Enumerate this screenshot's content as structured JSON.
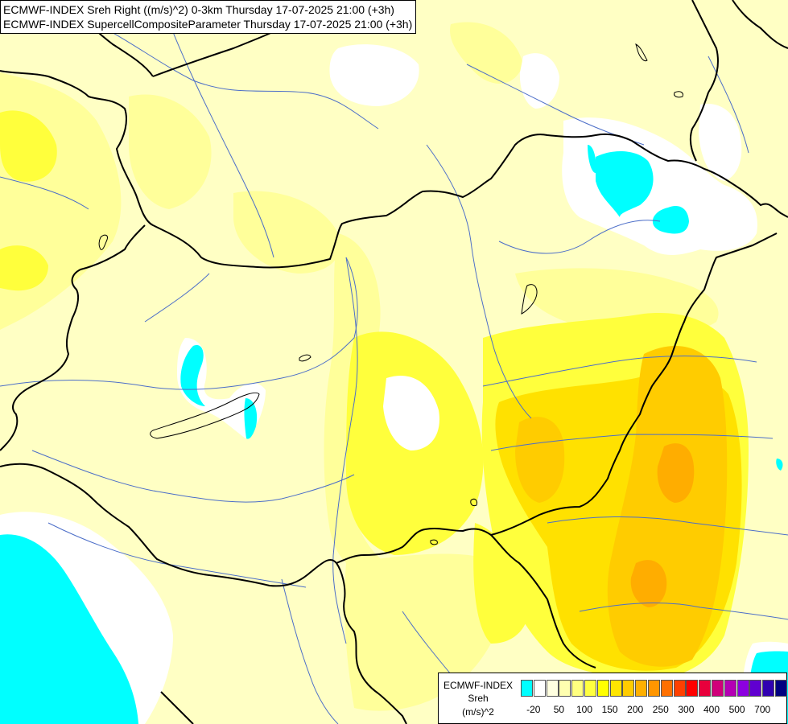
{
  "header": {
    "line1": "ECMWF-INDEX Sreh Right ((m/s)^2) 0-3km Thursday 17-07-2025 21:00 (+3h)",
    "line2": "ECMWF-INDEX SupercellCompositeParameter Thursday 17-07-2025 21:00 (+3h)"
  },
  "legend": {
    "title_1": "ECMWF-INDEX",
    "title_2": "Sreh",
    "title_3": "(m/s)^2",
    "colors": [
      "#00ffff",
      "#ffffff",
      "#ffffe0",
      "#ffffb0",
      "#ffff80",
      "#ffff40",
      "#ffff00",
      "#ffe600",
      "#ffcc00",
      "#ffb000",
      "#ff9600",
      "#ff7000",
      "#ff4000",
      "#ff0000",
      "#e8003c",
      "#d0007a",
      "#b400b4",
      "#8c00e0",
      "#6000d0",
      "#3000b0",
      "#000080"
    ],
    "ticks": [
      "-20",
      "50",
      "100",
      "150",
      "200",
      "250",
      "300",
      "400",
      "500",
      "700"
    ]
  },
  "map_fields": {
    "background": "#ffffc4",
    "cyan": "#00ffff",
    "white": "#ffffff",
    "pale": "#ffff9a",
    "yellow": "#ffff3c",
    "gold": "#ffe100",
    "amber": "#ffcc00",
    "orange": "#ffad00",
    "border_color": "#000000",
    "river_color": "#4c6ec8"
  }
}
